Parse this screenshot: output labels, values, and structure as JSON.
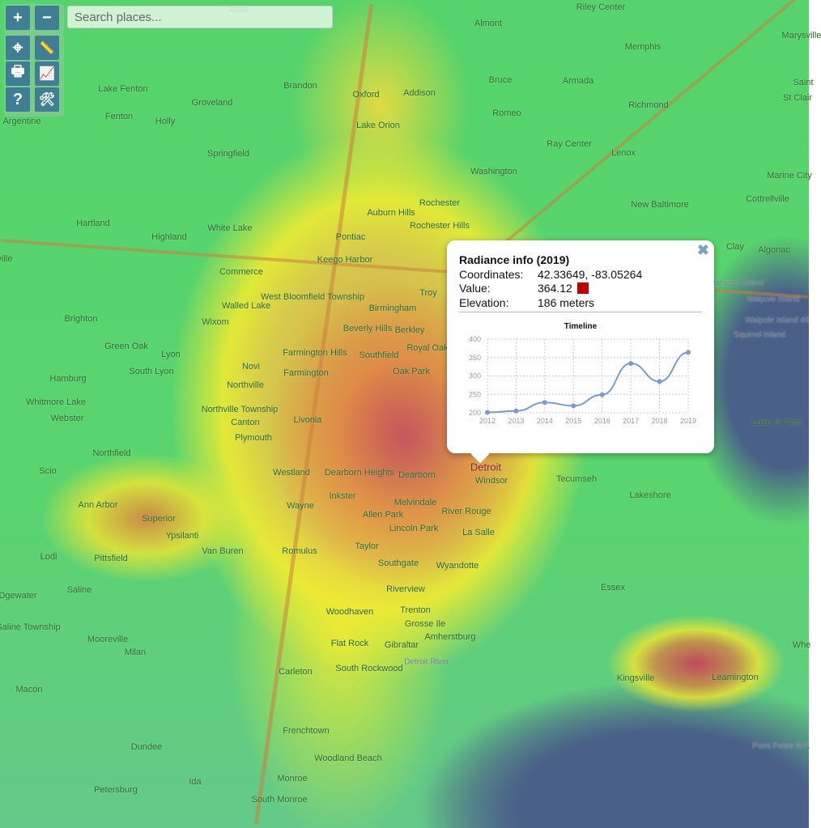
{
  "controls": {
    "zoom_in": "+",
    "zoom_out": "−",
    "tools": [
      {
        "icon": "locate-icon",
        "glyph": "⌖"
      },
      {
        "icon": "ruler-icon",
        "glyph": "📏"
      },
      {
        "icon": "print-icon",
        "glyph": "🖶"
      },
      {
        "icon": "chart-icon",
        "glyph": "📈"
      },
      {
        "icon": "help-icon",
        "glyph": "?"
      },
      {
        "icon": "tools-icon",
        "glyph": "🛠"
      }
    ]
  },
  "search": {
    "placeholder": "Search places...",
    "value": ""
  },
  "popup": {
    "title": "Radiance info (2019)",
    "coordinates_label": "Coordinates:",
    "coordinates": "42.33649, -83.05264",
    "value_label": "Value:",
    "value": "364.12",
    "value_color": "#c00000",
    "elevation_label": "Elevation:",
    "elevation": "186 meters",
    "close": "✖"
  },
  "chart_data": {
    "type": "line",
    "title": "Timeline",
    "categories": [
      "2012",
      "2013",
      "2014",
      "2015",
      "2016",
      "2017",
      "2018",
      "2019"
    ],
    "values": [
      201,
      205,
      228,
      219,
      249,
      334,
      285,
      364
    ],
    "ylim": [
      200,
      400
    ],
    "yticks": [
      "200",
      "250",
      "300",
      "350",
      "400"
    ],
    "grid": true,
    "color": "#7b9cc9"
  },
  "map": {
    "places": [
      "Atlas",
      "Riley Center",
      "Almont",
      "Memphis",
      "Marysville",
      "Brandon",
      "Oxford",
      "Addison",
      "Bruce",
      "Armada",
      "Romeo",
      "Richmond",
      "Lake Fenton",
      "Fenton",
      "Holly",
      "Groveland",
      "Argentine",
      "Lake Orion",
      "Ray Center",
      "Lenox",
      "Springfield",
      "Washington",
      "Rochester",
      "Rochester Hills",
      "New Baltimore",
      "Cottrellville",
      "Marine City",
      "St Clair",
      "Hartland",
      "White Lake",
      "Auburn Hills",
      "Pontiac",
      "Highland",
      "Keego Harbor",
      "Clay",
      "Algonac",
      "Harsens Island",
      "Commerce",
      "West Bloomfield Township",
      "Walled Lake",
      "Troy",
      "Birmingham",
      "Brighton",
      "Wixom",
      "Beverly Hills",
      "Berkley",
      "Walpole Island",
      "Walpole Island 46",
      "Squirrel Island",
      "Green Oak",
      "Lyon",
      "Farmington Hills",
      "Southfield",
      "Royal Oak",
      "Hamburg",
      "South Lyon",
      "Novi",
      "Farmington",
      "Oak Park",
      "Whitmore Lake",
      "Northville",
      "Northville Township",
      "Webster",
      "Canton",
      "Livonia",
      "Lake St Clair",
      "Plymouth",
      "Northfield",
      "Scio",
      "Westland",
      "Dearborn Heights",
      "Dearborn",
      "Detroit",
      "Windsor",
      "Tecumseh",
      "Lakeshore",
      "Ann Arbor",
      "Superior",
      "Wayne",
      "Inkster",
      "Melvindale",
      "Allen Park",
      "River Rouge",
      "Ypsilanti",
      "Lincoln Park",
      "La Salle",
      "Lodi",
      "Pittsfield",
      "Van Buren",
      "Romulus",
      "Taylor",
      "Southgate",
      "Wyandotte",
      "Saline",
      "Riverview",
      "Essex",
      "Dgewater",
      "Saline Township",
      "Woodhaven",
      "Trenton",
      "Grosse Ile",
      "Mooreville",
      "Milan",
      "Amherstburg",
      "Flat Rock",
      "Gibraltar",
      "Macon",
      "Carleton",
      "South Rockwood",
      "Kingsville",
      "Leamington",
      "Frenchtown",
      "Dundee",
      "Woodland Beach",
      "Point Pelee N.P.",
      "Petersburg",
      "Ida",
      "Monroe",
      "South Monroe",
      "Detroit River",
      "Whe",
      "Saint",
      "ville"
    ]
  }
}
